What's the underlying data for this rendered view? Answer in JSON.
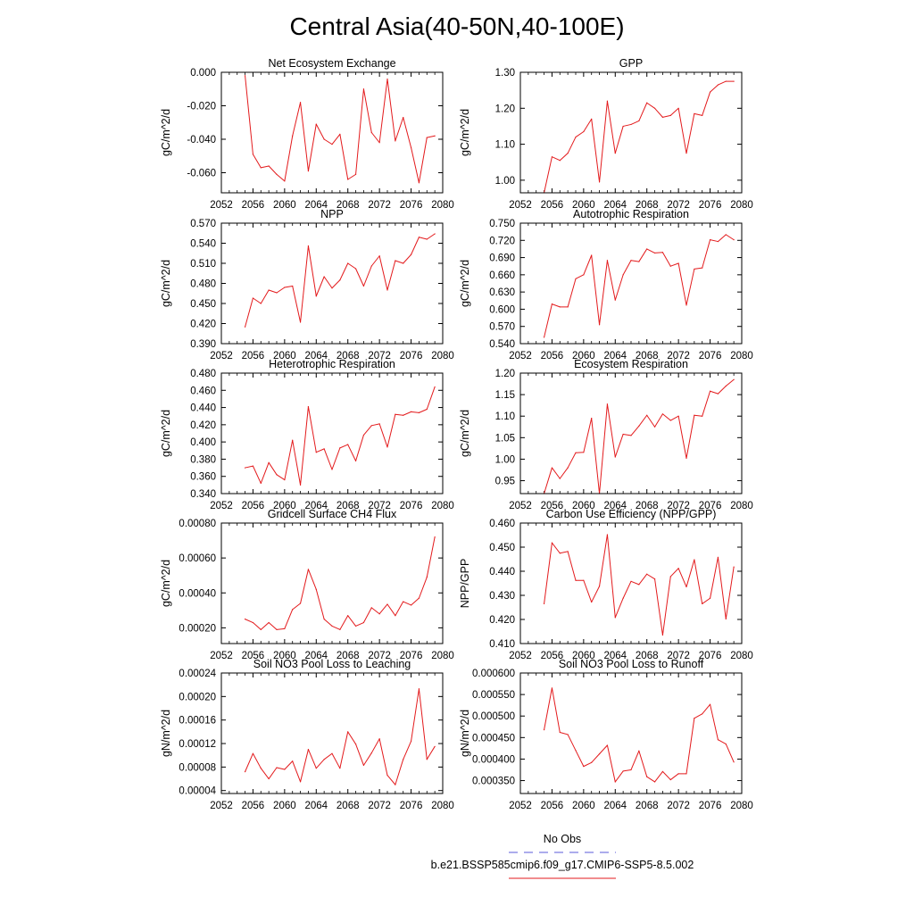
{
  "page": {
    "title": "Central Asia(40-50N,40-100E)"
  },
  "legend": {
    "entries": [
      {
        "label": "No Obs",
        "color": "#5a5ad8",
        "style": "dashed"
      },
      {
        "label": "b.e21.BSSP585cmip6.f09_g17.CMIP6-SSP5-8.5.002",
        "color": "#e31a1c",
        "style": "solid"
      }
    ]
  },
  "chart_data": [
    {
      "type": "line",
      "title": "Net Ecosystem Exchange",
      "ylabel": "gC/m^2/d",
      "xlim": [
        2052,
        2080
      ],
      "ylim": [
        -0.072,
        0.0
      ],
      "xticks": [
        2052,
        2056,
        2060,
        2064,
        2068,
        2072,
        2076,
        2080
      ],
      "yticks": [
        "0.000",
        "-0.020",
        "-0.040",
        "-0.060"
      ],
      "series": [
        {
          "color": "#e31a1c",
          "x": [
            2055,
            2056,
            2057,
            2058,
            2059,
            2060,
            2061,
            2062,
            2063,
            2064,
            2065,
            2066,
            2067,
            2068,
            2069,
            2070,
            2071,
            2072,
            2073,
            2074,
            2075,
            2076,
            2077,
            2078,
            2079
          ],
          "y": [
            -0.002,
            -0.049,
            -0.057,
            -0.056,
            -0.061,
            -0.065,
            -0.038,
            -0.018,
            -0.059,
            -0.031,
            -0.04,
            -0.043,
            -0.037,
            -0.064,
            -0.061,
            -0.01,
            -0.036,
            -0.042,
            -0.004,
            -0.041,
            -0.027,
            -0.045,
            -0.066,
            -0.039,
            -0.038
          ]
        }
      ]
    },
    {
      "type": "line",
      "title": "GPP",
      "ylabel": "gC/m^2/d",
      "xlim": [
        2052,
        2080
      ],
      "ylim": [
        0.965,
        1.3
      ],
      "xticks": [
        2052,
        2056,
        2060,
        2064,
        2068,
        2072,
        2076,
        2080
      ],
      "yticks": [
        "1.00",
        "1.10",
        "1.20",
        "1.30"
      ],
      "series": [
        {
          "color": "#e31a1c",
          "x": [
            2055,
            2056,
            2057,
            2058,
            2059,
            2060,
            2061,
            2062,
            2063,
            2064,
            2065,
            2066,
            2067,
            2068,
            2069,
            2070,
            2071,
            2072,
            2073,
            2074,
            2075,
            2076,
            2077,
            2078,
            2079
          ],
          "y": [
            0.965,
            1.065,
            1.055,
            1.075,
            1.12,
            1.135,
            1.17,
            0.995,
            1.22,
            1.075,
            1.15,
            1.155,
            1.165,
            1.215,
            1.2,
            1.175,
            1.18,
            1.2,
            1.075,
            1.185,
            1.18,
            1.245,
            1.265,
            1.275,
            1.275
          ]
        }
      ]
    },
    {
      "type": "line",
      "title": "NPP",
      "ylabel": "gC/m^2/d",
      "xlim": [
        2052,
        2080
      ],
      "ylim": [
        0.39,
        0.57
      ],
      "xticks": [
        2052,
        2056,
        2060,
        2064,
        2068,
        2072,
        2076,
        2080
      ],
      "yticks": [
        "0.390",
        "0.420",
        "0.450",
        "0.480",
        "0.510",
        "0.540",
        "0.570"
      ],
      "series": [
        {
          "color": "#e31a1c",
          "x": [
            2055,
            2056,
            2057,
            2058,
            2059,
            2060,
            2061,
            2062,
            2063,
            2064,
            2065,
            2066,
            2067,
            2068,
            2069,
            2070,
            2071,
            2072,
            2073,
            2074,
            2075,
            2076,
            2077,
            2078,
            2079
          ],
          "y": [
            0.415,
            0.458,
            0.45,
            0.47,
            0.466,
            0.474,
            0.476,
            0.422,
            0.536,
            0.461,
            0.49,
            0.473,
            0.485,
            0.51,
            0.502,
            0.476,
            0.506,
            0.521,
            0.47,
            0.514,
            0.51,
            0.523,
            0.549,
            0.546,
            0.554
          ]
        }
      ]
    },
    {
      "type": "line",
      "title": "Autotrophic Respiration",
      "ylabel": "gC/m^2/d",
      "xlim": [
        2052,
        2080
      ],
      "ylim": [
        0.54,
        0.75
      ],
      "xticks": [
        2052,
        2056,
        2060,
        2064,
        2068,
        2072,
        2076,
        2080
      ],
      "yticks": [
        "0.540",
        "0.570",
        "0.600",
        "0.630",
        "0.660",
        "0.690",
        "0.720",
        "0.750"
      ],
      "series": [
        {
          "color": "#e31a1c",
          "x": [
            2055,
            2056,
            2057,
            2058,
            2059,
            2060,
            2061,
            2062,
            2063,
            2064,
            2065,
            2066,
            2067,
            2068,
            2069,
            2070,
            2071,
            2072,
            2073,
            2074,
            2075,
            2076,
            2077,
            2078,
            2079
          ],
          "y": [
            0.551,
            0.609,
            0.604,
            0.604,
            0.653,
            0.66,
            0.694,
            0.573,
            0.685,
            0.616,
            0.66,
            0.685,
            0.683,
            0.705,
            0.698,
            0.699,
            0.675,
            0.68,
            0.607,
            0.67,
            0.672,
            0.721,
            0.718,
            0.73,
            0.721
          ]
        }
      ]
    },
    {
      "type": "line",
      "title": "Heterotrophic Respiration",
      "ylabel": "gC/m^2/d",
      "xlim": [
        2052,
        2080
      ],
      "ylim": [
        0.34,
        0.48
      ],
      "xticks": [
        2052,
        2056,
        2060,
        2064,
        2068,
        2072,
        2076,
        2080
      ],
      "yticks": [
        "0.340",
        "0.360",
        "0.380",
        "0.400",
        "0.420",
        "0.440",
        "0.460",
        "0.480"
      ],
      "series": [
        {
          "color": "#e31a1c",
          "x": [
            2055,
            2056,
            2057,
            2058,
            2059,
            2060,
            2061,
            2062,
            2063,
            2064,
            2065,
            2066,
            2067,
            2068,
            2069,
            2070,
            2071,
            2072,
            2073,
            2074,
            2075,
            2076,
            2077,
            2078,
            2079
          ],
          "y": [
            0.37,
            0.372,
            0.352,
            0.376,
            0.362,
            0.356,
            0.402,
            0.35,
            0.441,
            0.388,
            0.392,
            0.368,
            0.393,
            0.397,
            0.378,
            0.408,
            0.419,
            0.421,
            0.394,
            0.432,
            0.431,
            0.435,
            0.434,
            0.438,
            0.464
          ]
        }
      ]
    },
    {
      "type": "line",
      "title": "Ecosystem Respiration",
      "ylabel": "gC/m^2/d",
      "xlim": [
        2052,
        2080
      ],
      "ylim": [
        0.92,
        1.2
      ],
      "xticks": [
        2052,
        2056,
        2060,
        2064,
        2068,
        2072,
        2076,
        2080
      ],
      "yticks": [
        "0.95",
        "1.00",
        "1.05",
        "1.10",
        "1.15",
        "1.20"
      ],
      "series": [
        {
          "color": "#e31a1c",
          "x": [
            2055,
            2056,
            2057,
            2058,
            2059,
            2060,
            2061,
            2062,
            2063,
            2064,
            2065,
            2066,
            2067,
            2068,
            2069,
            2070,
            2071,
            2072,
            2073,
            2074,
            2075,
            2076,
            2077,
            2078,
            2079
          ],
          "y": [
            0.92,
            0.98,
            0.955,
            0.98,
            1.015,
            1.016,
            1.095,
            0.92,
            1.128,
            1.005,
            1.058,
            1.055,
            1.077,
            1.102,
            1.075,
            1.105,
            1.09,
            1.1,
            1.002,
            1.102,
            1.1,
            1.158,
            1.152,
            1.17,
            1.185
          ]
        }
      ]
    },
    {
      "type": "line",
      "title": "Gridcell Surface CH4 Flux",
      "ylabel": "gC/m^2/d",
      "xlim": [
        2052,
        2080
      ],
      "ylim": [
        0.00011,
        0.0008
      ],
      "xticks": [
        2052,
        2056,
        2060,
        2064,
        2068,
        2072,
        2076,
        2080
      ],
      "yticks": [
        "0.00020",
        "0.00040",
        "0.00060",
        "0.00080"
      ],
      "series": [
        {
          "color": "#e31a1c",
          "x": [
            2055,
            2056,
            2057,
            2058,
            2059,
            2060,
            2061,
            2062,
            2063,
            2064,
            2065,
            2066,
            2067,
            2068,
            2069,
            2070,
            2071,
            2072,
            2073,
            2074,
            2075,
            2076,
            2077,
            2078,
            2079
          ],
          "y": [
            0.00025,
            0.00023,
            0.00019,
            0.00023,
            0.00019,
            0.000195,
            0.000305,
            0.00034,
            0.000535,
            0.00042,
            0.00025,
            0.00021,
            0.00019,
            0.00027,
            0.00021,
            0.00023,
            0.000315,
            0.00028,
            0.000335,
            0.00027,
            0.00035,
            0.00033,
            0.00037,
            0.00049,
            0.00072
          ]
        }
      ]
    },
    {
      "type": "line",
      "title": "Carbon Use Efficiency (NPP/GPP)",
      "ylabel": "NPP/GPP",
      "xlim": [
        2052,
        2080
      ],
      "ylim": [
        0.41,
        0.46
      ],
      "xticks": [
        2052,
        2056,
        2060,
        2064,
        2068,
        2072,
        2076,
        2080
      ],
      "yticks": [
        "0.410",
        "0.420",
        "0.430",
        "0.440",
        "0.450",
        "0.460"
      ],
      "series": [
        {
          "color": "#e31a1c",
          "x": [
            2055,
            2056,
            2057,
            2058,
            2059,
            2060,
            2061,
            2062,
            2063,
            2064,
            2065,
            2066,
            2067,
            2068,
            2069,
            2070,
            2071,
            2072,
            2073,
            2074,
            2075,
            2076,
            2077,
            2078,
            2079
          ],
          "y": [
            0.4265,
            0.4518,
            0.4475,
            0.4482,
            0.4362,
            0.4362,
            0.4272,
            0.4338,
            0.4552,
            0.4208,
            0.4288,
            0.4358,
            0.4345,
            0.4388,
            0.4368,
            0.4135,
            0.4378,
            0.4412,
            0.4335,
            0.4448,
            0.4265,
            0.4288,
            0.4458,
            0.4202,
            0.4418
          ]
        }
      ]
    },
    {
      "type": "line",
      "title": "Soil NO3 Pool Loss to Leaching",
      "ylabel": "gN/m^2/d",
      "xlim": [
        2052,
        2080
      ],
      "ylim": [
        3.5e-05,
        0.00024
      ],
      "xticks": [
        2052,
        2056,
        2060,
        2064,
        2068,
        2072,
        2076,
        2080
      ],
      "yticks": [
        "0.00004",
        "0.00008",
        "0.00012",
        "0.00016",
        "0.00020",
        "0.00024"
      ],
      "series": [
        {
          "color": "#e31a1c",
          "x": [
            2055,
            2056,
            2057,
            2058,
            2059,
            2060,
            2061,
            2062,
            2063,
            2064,
            2065,
            2066,
            2067,
            2068,
            2069,
            2070,
            2071,
            2072,
            2073,
            2074,
            2075,
            2076,
            2077,
            2078,
            2079
          ],
          "y": [
            7.2e-05,
            0.000103,
            7.8e-05,
            6e-05,
            7.9e-05,
            7.6e-05,
            9e-05,
            5.5e-05,
            0.00011,
            7.8e-05,
            9.3e-05,
            0.000103,
            7.8e-05,
            0.00014,
            0.000119,
            8.3e-05,
            0.000104,
            0.000128,
            6.6e-05,
            5e-05,
            9.3e-05,
            0.000124,
            0.000213,
            9.3e-05,
            0.000115
          ]
        }
      ]
    },
    {
      "type": "line",
      "title": "Soil NO3 Pool Loss to Runoff",
      "ylabel": "gN/m^2/d",
      "xlim": [
        2052,
        2080
      ],
      "ylim": [
        0.00032,
        0.0006
      ],
      "xticks": [
        2052,
        2056,
        2060,
        2064,
        2068,
        2072,
        2076,
        2080
      ],
      "yticks": [
        "0.000350",
        "0.000400",
        "0.000450",
        "0.000500",
        "0.000550",
        "0.000600"
      ],
      "series": [
        {
          "color": "#e31a1c",
          "x": [
            2055,
            2056,
            2057,
            2058,
            2059,
            2060,
            2061,
            2062,
            2063,
            2064,
            2065,
            2066,
            2067,
            2068,
            2069,
            2070,
            2071,
            2072,
            2073,
            2074,
            2075,
            2076,
            2077,
            2078,
            2079
          ],
          "y": [
            0.000468,
            0.000565,
            0.000462,
            0.000457,
            0.00042,
            0.000383,
            0.000392,
            0.000412,
            0.000432,
            0.000347,
            0.000372,
            0.000375,
            0.000419,
            0.000359,
            0.000347,
            0.000371,
            0.000352,
            0.000366,
            0.000366,
            0.000495,
            0.000505,
            0.000527,
            0.000445,
            0.000435,
            0.000393
          ]
        }
      ]
    }
  ]
}
